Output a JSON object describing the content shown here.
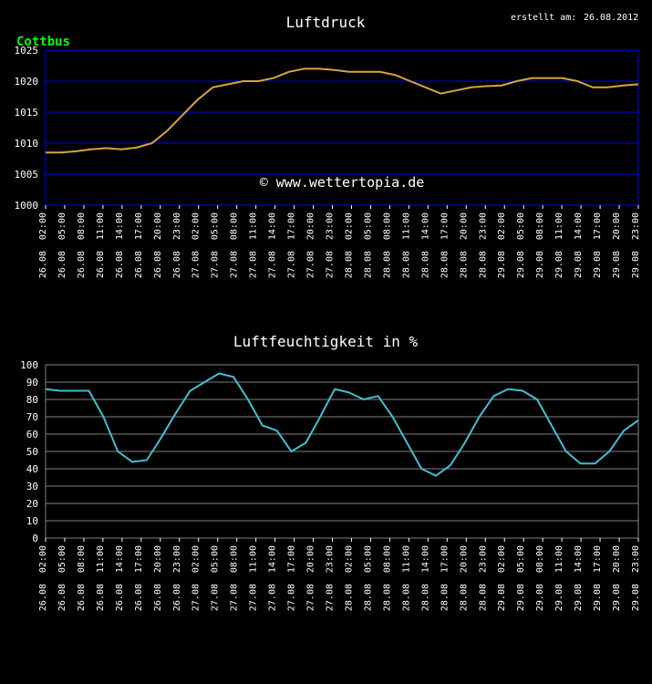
{
  "header": {
    "title": "Luftdruck",
    "created_label": "erstellt am:",
    "created_date": "26.08.2012",
    "location": "Cottbus"
  },
  "watermark": "© www.wettertopia.de",
  "chart1": {
    "type": "line",
    "title": "Luftdruck",
    "ylim": [
      1000,
      1025
    ],
    "ytick_step": 5,
    "yticks": [
      1000,
      1005,
      1010,
      1015,
      1020,
      1025
    ],
    "line_color": "#d4a640",
    "grid_color": "#0000ff",
    "border_color": "#0000ff",
    "background_color": "#000000",
    "axis_label_color": "#ffffff",
    "title_color": "#ffffff",
    "location_color": "#00ff00",
    "title_fontsize": 16,
    "label_fontsize": 11,
    "line_width": 2,
    "values": [
      1008.5,
      1008.5,
      1008.7,
      1009,
      1009.2,
      1009,
      1009.3,
      1010,
      1012,
      1014.5,
      1017,
      1019,
      1019.5,
      1020,
      1020,
      1020.5,
      1021.5,
      1022,
      1022,
      1021.8,
      1021.5,
      1021.5,
      1021.5,
      1021,
      1020,
      1019,
      1018,
      1018.5,
      1019,
      1019.2,
      1019.3,
      1020,
      1020.5,
      1020.5,
      1020.5,
      1020,
      1019,
      1019,
      1019.3,
      1019.5
    ]
  },
  "chart2": {
    "type": "line",
    "title": "Luftfeuchtigkeit in %",
    "ylim": [
      0,
      100
    ],
    "ytick_step": 10,
    "yticks": [
      0,
      10,
      20,
      30,
      40,
      50,
      60,
      70,
      80,
      90,
      100
    ],
    "line_color": "#40c0d0",
    "grid_color": "#808080",
    "border_color": "#808080",
    "background_color": "#000000",
    "axis_label_color": "#ffffff",
    "title_color": "#ffffff",
    "title_fontsize": 16,
    "label_fontsize": 11,
    "line_width": 2,
    "values": [
      86,
      85,
      85,
      85,
      70,
      50,
      44,
      45,
      58,
      72,
      85,
      90,
      95,
      93,
      80,
      65,
      62,
      50,
      55,
      70,
      86,
      84,
      80,
      82,
      70,
      55,
      40,
      36,
      42,
      55,
      70,
      82,
      86,
      85,
      80,
      65,
      50,
      43,
      43,
      50,
      62,
      68
    ]
  },
  "xlabels_dates": [
    "26.08",
    "26.08",
    "26.08",
    "26.08",
    "26.08",
    "26.08",
    "26.08",
    "26.08",
    "27.08",
    "27.08",
    "27.08",
    "27.08",
    "27.08",
    "27.08",
    "27.08",
    "27.08",
    "28.08",
    "28.08",
    "28.08",
    "28.08",
    "28.08",
    "28.08",
    "28.08",
    "28.08",
    "29.08",
    "29.08",
    "29.08",
    "29.08",
    "29.08",
    "29.08",
    "29.08",
    "29.08"
  ],
  "xlabels_times": [
    "02:00",
    "05:00",
    "08:00",
    "11:00",
    "14:00",
    "17:00",
    "20:00",
    "23:00",
    "02:00",
    "05:00",
    "08:00",
    "11:00",
    "14:00",
    "17:00",
    "20:00",
    "23:00",
    "02:00",
    "05:00",
    "08:00",
    "11:00",
    "14:00",
    "17:00",
    "20:00",
    "23:00",
    "02:00",
    "05:00",
    "08:00",
    "11:00",
    "14:00",
    "17:00",
    "20:00",
    "23:00"
  ]
}
